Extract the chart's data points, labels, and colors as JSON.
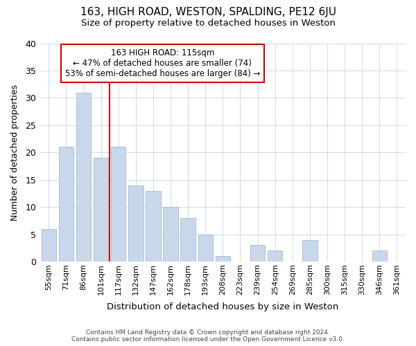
{
  "title": "163, HIGH ROAD, WESTON, SPALDING, PE12 6JU",
  "subtitle": "Size of property relative to detached houses in Weston",
  "xlabel": "Distribution of detached houses by size in Weston",
  "ylabel": "Number of detached properties",
  "categories": [
    "55sqm",
    "71sqm",
    "86sqm",
    "101sqm",
    "117sqm",
    "132sqm",
    "147sqm",
    "162sqm",
    "178sqm",
    "193sqm",
    "208sqm",
    "223sqm",
    "239sqm",
    "254sqm",
    "269sqm",
    "285sqm",
    "300sqm",
    "315sqm",
    "330sqm",
    "346sqm",
    "361sqm"
  ],
  "values": [
    6,
    21,
    31,
    19,
    21,
    14,
    13,
    10,
    8,
    5,
    1,
    0,
    3,
    2,
    0,
    4,
    0,
    0,
    0,
    2,
    0
  ],
  "bar_color": "#c8d8ea",
  "bar_edgecolor": "#a8c0d8",
  "vline_x": 4,
  "vline_color": "#cc0000",
  "annotation_title": "163 HIGH ROAD: 115sqm",
  "annotation_line1": "← 47% of detached houses are smaller (74)",
  "annotation_line2": "53% of semi-detached houses are larger (84) →",
  "annotation_box_facecolor": "#ffffff",
  "annotation_box_edgecolor": "#cc0000",
  "ylim": [
    0,
    40
  ],
  "yticks": [
    0,
    5,
    10,
    15,
    20,
    25,
    30,
    35,
    40
  ],
  "footer_line1": "Contains HM Land Registry data © Crown copyright and database right 2024.",
  "footer_line2": "Contains public sector information licensed under the Open Government Licence v3.0.",
  "bg_color": "#ffffff",
  "plot_bg_color": "#ffffff",
  "grid_color": "#d0d8e8"
}
